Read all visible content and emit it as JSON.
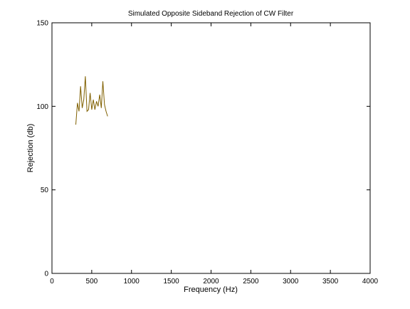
{
  "chart_data": {
    "type": "line",
    "title": "Simulated Opposite Sideband Rejection of CW Filter",
    "xlabel": "Frequency (Hz)",
    "ylabel": "Rejection (db)",
    "xlim": [
      0,
      4000
    ],
    "ylim": [
      0,
      150
    ],
    "xticks": [
      0,
      500,
      1000,
      1500,
      2000,
      2500,
      3000,
      3500,
      4000
    ],
    "yticks": [
      0,
      50,
      100,
      150
    ],
    "grid": false,
    "series": [
      {
        "color": "#806000",
        "x": [
          300,
          320,
          340,
          360,
          380,
          400,
          420,
          440,
          460,
          480,
          500,
          520,
          540,
          560,
          580,
          600,
          620,
          640,
          660,
          680,
          700
        ],
        "y": [
          89,
          102,
          97,
          112,
          99,
          104,
          118,
          97,
          98,
          108,
          98,
          104,
          98,
          103,
          100,
          107,
          99,
          115,
          101,
          97,
          94
        ]
      }
    ]
  }
}
